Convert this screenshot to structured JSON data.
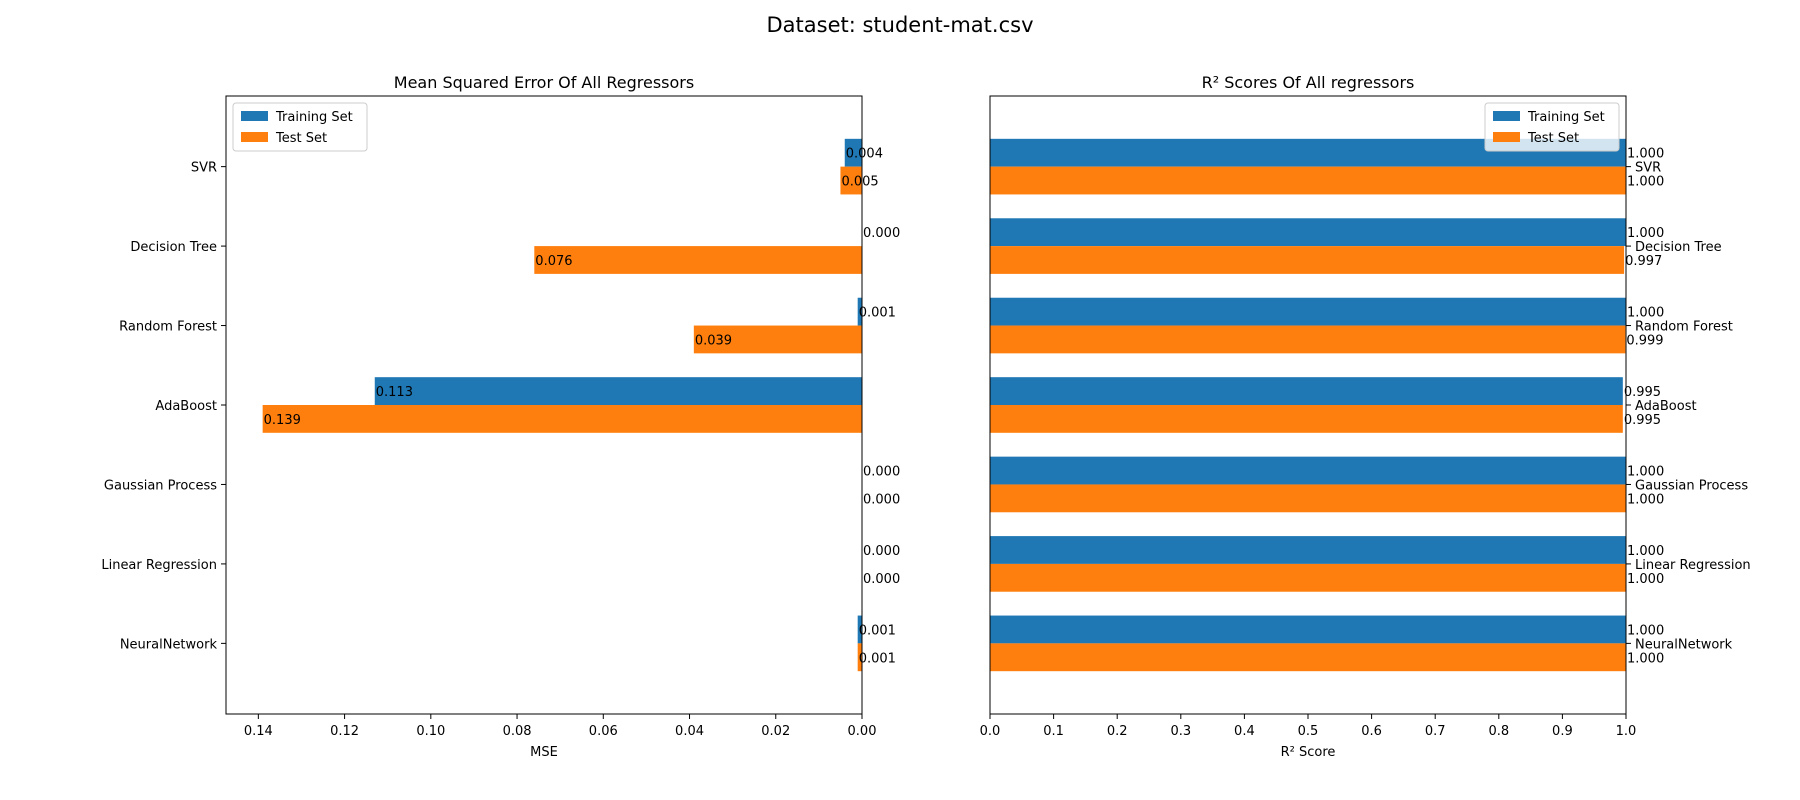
{
  "figure": {
    "suptitle": "Dataset: student-mat.csv"
  },
  "colors": {
    "train": "#1f77b4",
    "test": "#ff7f0e",
    "axis": "#000000"
  },
  "chart_data": [
    {
      "type": "bar",
      "orientation": "horizontal",
      "title": "Mean Squared Error Of All Regressors",
      "xlabel": "MSE",
      "ylabel": "",
      "xlim": [
        0.1475,
        0.0
      ],
      "x_inverted": true,
      "xticks": [
        0.14,
        0.12,
        0.1,
        0.08,
        0.06,
        0.04,
        0.02,
        0.0
      ],
      "xtick_labels": [
        "0.14",
        "0.12",
        "0.10",
        "0.08",
        "0.06",
        "0.04",
        "0.02",
        "0.00"
      ],
      "yaxis_side": "left",
      "categories": [
        "SVR",
        "Decision Tree",
        "Random Forest",
        "AdaBoost",
        "Gaussian Process",
        "Linear Regression",
        "NeuralNetwork"
      ],
      "series": [
        {
          "name": "Training Set",
          "values": [
            0.004,
            0.0,
            0.001,
            0.113,
            0.0,
            0.0,
            0.001
          ],
          "labels": [
            "0.004",
            "0.000",
            "0.001",
            "0.113",
            "0.000",
            "0.000",
            "0.001"
          ]
        },
        {
          "name": "Test Set",
          "values": [
            0.005,
            0.076,
            0.039,
            0.139,
            0.0,
            0.0,
            0.001
          ],
          "labels": [
            "0.005",
            "0.076",
            "0.039",
            "0.139",
            "0.000",
            "0.000",
            "0.001"
          ]
        }
      ],
      "legend": "top-left",
      "grid": false
    },
    {
      "type": "bar",
      "orientation": "horizontal",
      "title": "R² Scores Of All regressors",
      "xlabel": "R² Score",
      "ylabel": "",
      "xlim": [
        0.0,
        1.0
      ],
      "x_inverted": false,
      "xticks": [
        0.0,
        0.1,
        0.2,
        0.3,
        0.4,
        0.5,
        0.6,
        0.7,
        0.8,
        0.9,
        1.0
      ],
      "xtick_labels": [
        "0.0",
        "0.1",
        "0.2",
        "0.3",
        "0.4",
        "0.5",
        "0.6",
        "0.7",
        "0.8",
        "0.9",
        "1.0"
      ],
      "yaxis_side": "right",
      "categories": [
        "SVR",
        "Decision Tree",
        "Random Forest",
        "AdaBoost",
        "Gaussian Process",
        "Linear Regression",
        "NeuralNetwork"
      ],
      "series": [
        {
          "name": "Training Set",
          "values": [
            1.0,
            1.0,
            1.0,
            0.995,
            1.0,
            1.0,
            1.0
          ],
          "labels": [
            "1.000",
            "1.000",
            "1.000",
            "0.995",
            "1.000",
            "1.000",
            "1.000"
          ]
        },
        {
          "name": "Test Set",
          "values": [
            1.0,
            0.997,
            0.999,
            0.995,
            1.0,
            1.0,
            1.0
          ],
          "labels": [
            "1.000",
            "0.997",
            "0.999",
            "0.995",
            "1.000",
            "1.000",
            "1.000"
          ]
        }
      ],
      "legend": "top-right",
      "grid": false
    }
  ]
}
